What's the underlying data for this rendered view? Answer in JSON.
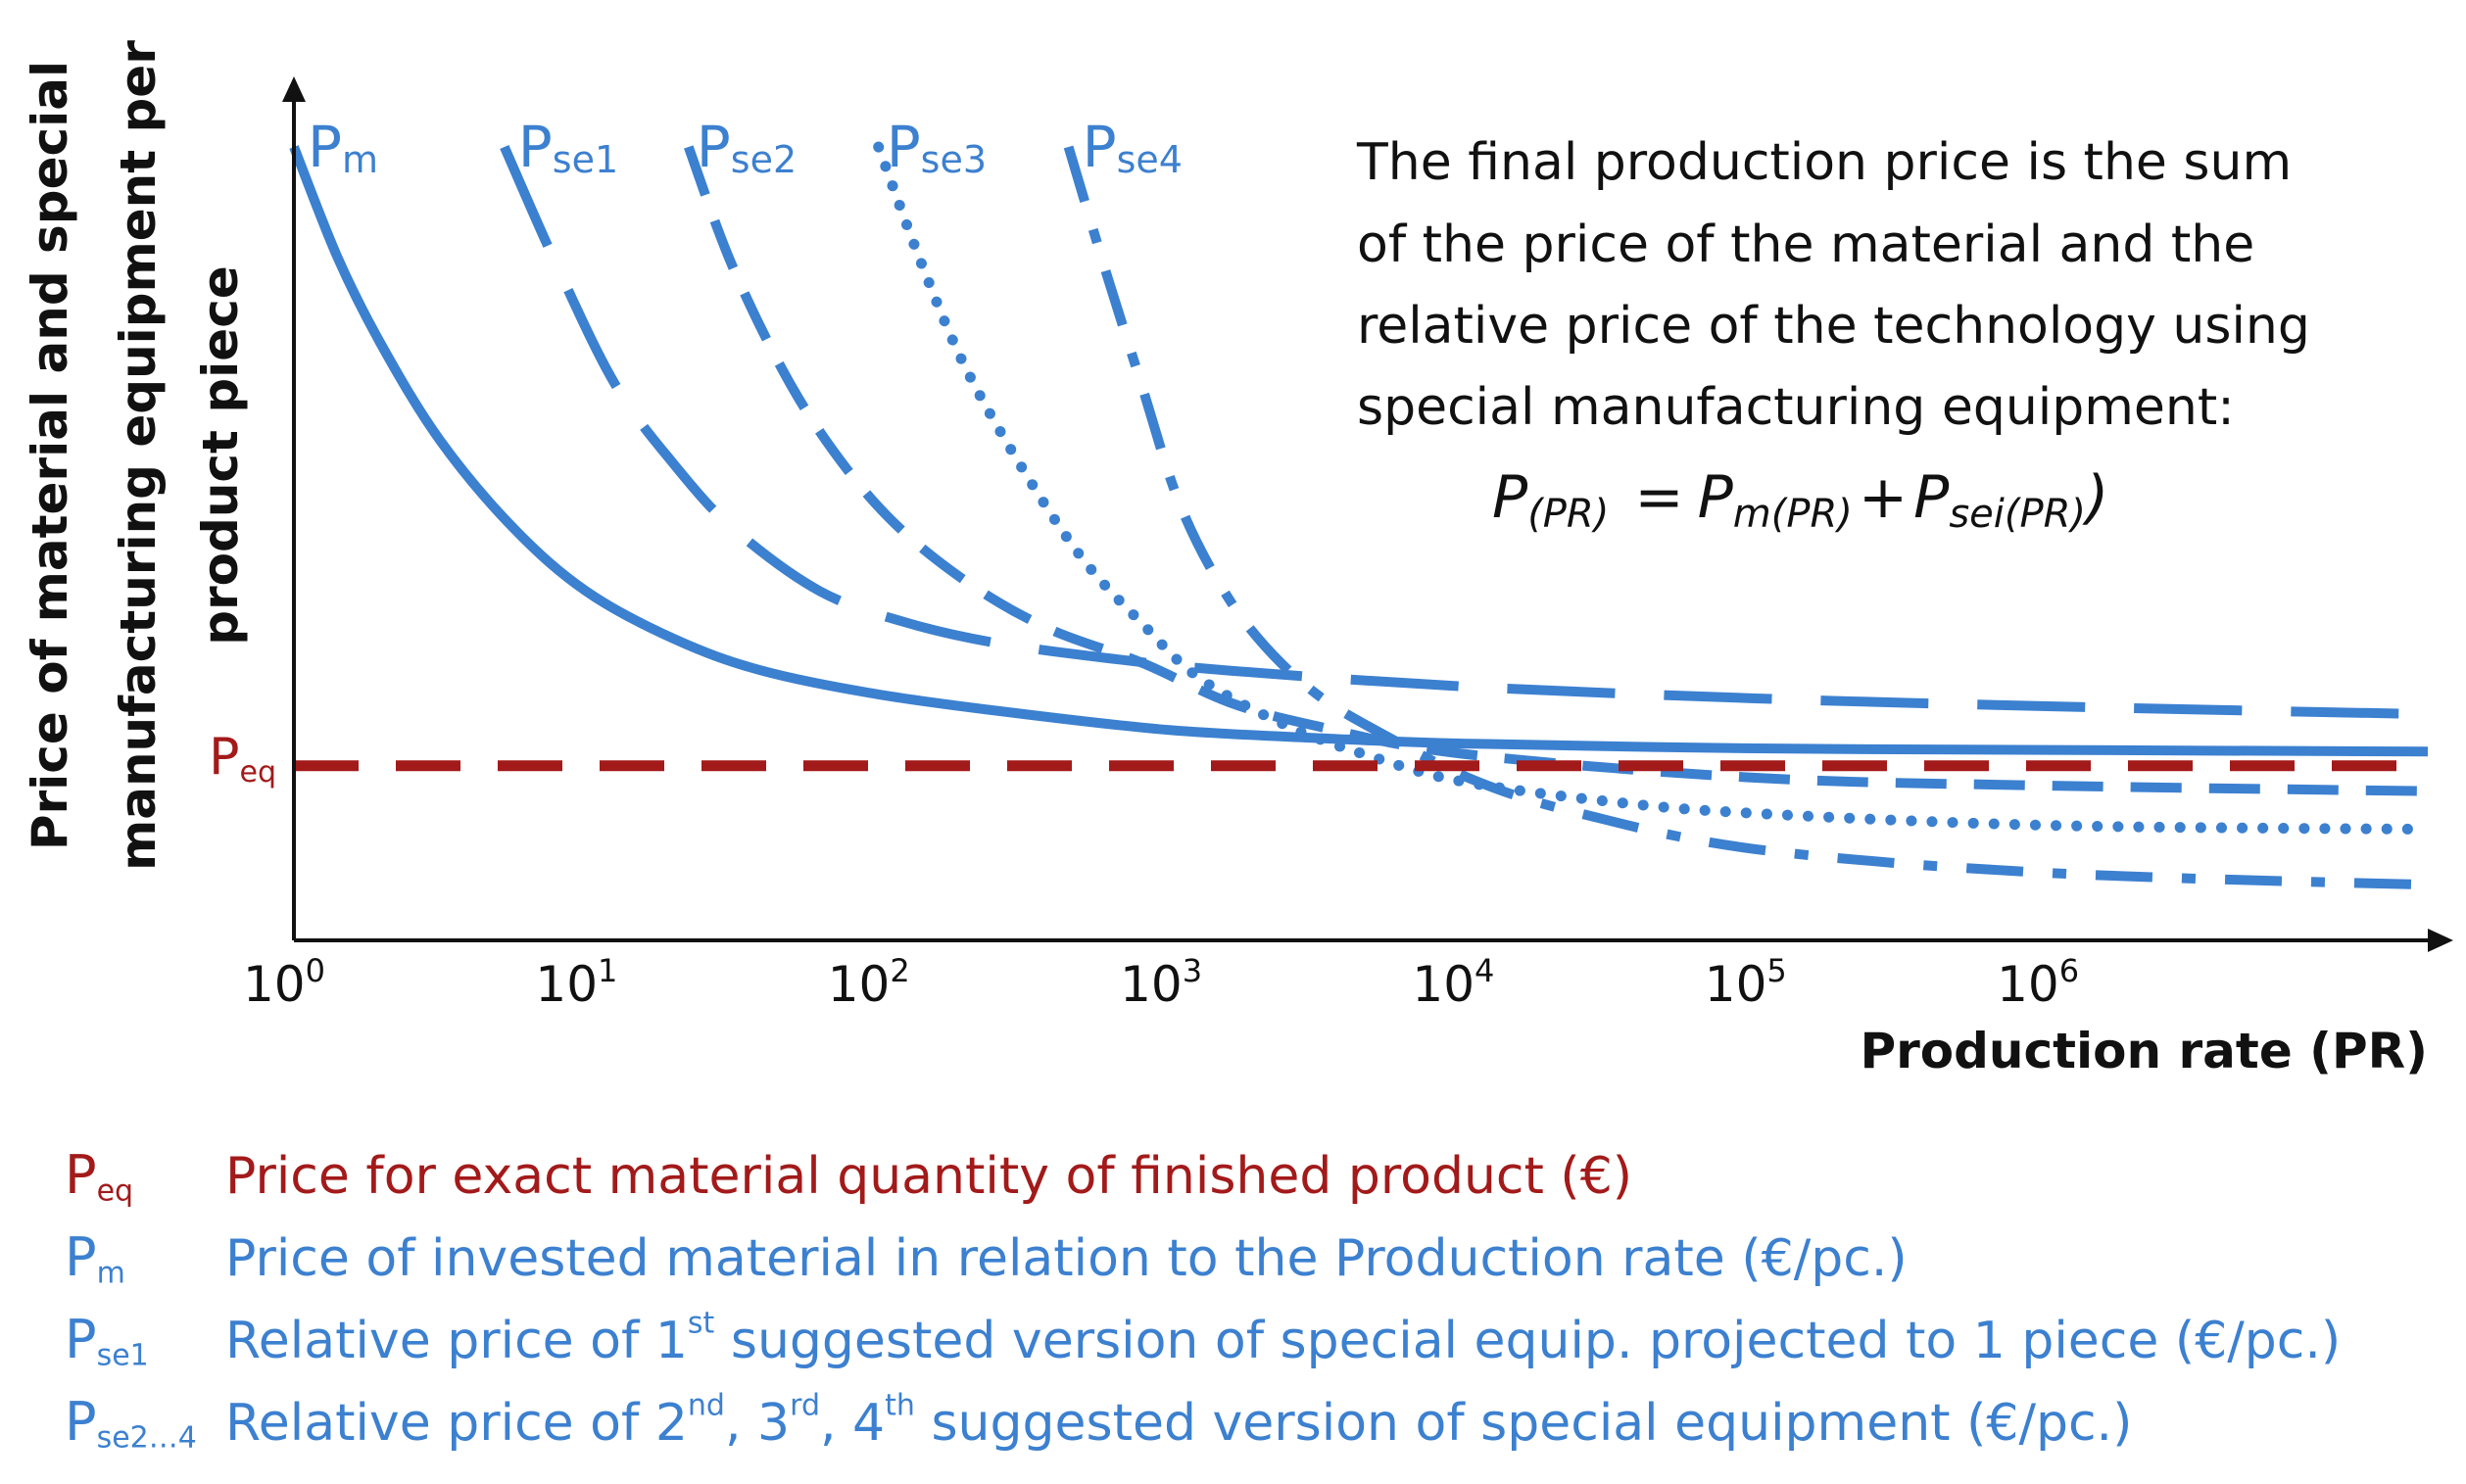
{
  "chart_data": {
    "type": "line",
    "title": "",
    "xlabel": "Production rate (PR)",
    "ylabel_line1": "Price of material and special",
    "ylabel_line2": "manufacturing  equipment per",
    "ylabel_line3": "product piece",
    "xscale": "log10",
    "xlim": [
      0,
      7.3
    ],
    "ylim": [
      0,
      100
    ],
    "x_ticks": [
      0,
      1,
      2,
      3,
      4,
      5,
      6
    ],
    "x_tick_base": "10",
    "x_tick_exps": [
      "0",
      "1",
      "2",
      "3",
      "4",
      "5",
      "6"
    ],
    "reference_line": {
      "name": "Peq",
      "base": "P",
      "sub": "eq",
      "y": 22,
      "color": "#a31a1a"
    },
    "series": [
      {
        "name": "Pm",
        "base": "P",
        "sub": "m",
        "style": "solid",
        "color": "#3c80d0",
        "x": [
          0,
          0.15,
          0.3,
          0.5,
          0.75,
          1,
          1.3,
          1.6,
          2,
          2.5,
          3,
          3.5,
          4,
          5,
          6,
          7.3
        ],
        "y": [
          100,
          86,
          75,
          63,
          52,
          44,
          38,
          34,
          31,
          28.5,
          26.5,
          25.5,
          24.8,
          24.2,
          24,
          23.8
        ]
      },
      {
        "name": "Pse1",
        "base": "P",
        "sub": "se1",
        "style": "long-dash",
        "color": "#3c80d0",
        "x": [
          0.72,
          0.9,
          1.1,
          1.3,
          1.5,
          1.8,
          2.1,
          2.4,
          2.8,
          3.2,
          4,
          5,
          6,
          7.3
        ],
        "y": [
          100,
          85,
          70,
          60,
          52,
          44,
          40,
          37.5,
          35.5,
          34,
          32,
          30.5,
          29.5,
          28.5
        ]
      },
      {
        "name": "Pse2",
        "base": "P",
        "sub": "se2",
        "style": "dash",
        "color": "#3c80d0",
        "x": [
          1.35,
          1.5,
          1.7,
          1.9,
          2.1,
          2.35,
          2.6,
          2.9,
          3.2,
          3.5,
          4,
          5,
          6,
          7.3
        ],
        "y": [
          100,
          85,
          70,
          59,
          51,
          44,
          39,
          35,
          30,
          27,
          23.5,
          20.5,
          19.5,
          18.8
        ]
      },
      {
        "name": "Pse3",
        "base": "P",
        "sub": "se3",
        "style": "dot",
        "color": "#3c80d0",
        "x": [
          2.0,
          2.15,
          2.3,
          2.5,
          2.7,
          2.9,
          3.1,
          3.4,
          3.7,
          4,
          4.5,
          5,
          6,
          7.3
        ],
        "y": [
          100,
          85,
          72,
          59,
          48,
          40,
          33,
          27,
          23,
          20,
          17.5,
          16,
          14.5,
          14
        ]
      },
      {
        "name": "Pse4",
        "base": "P",
        "sub": "se4",
        "style": "dash-dot",
        "color": "#3c80d0",
        "x": [
          2.65,
          2.78,
          2.9,
          3.02,
          3.15,
          3.3,
          3.5,
          3.75,
          4.05,
          4.4,
          5,
          6,
          7.3
        ],
        "y": [
          100,
          84,
          70,
          56,
          46,
          38,
          31,
          25.5,
          20,
          16,
          11.5,
          8.5,
          7
        ]
      }
    ]
  },
  "annotation": {
    "lines": [
      "The final production price is the sum",
      "of the price of the material and the",
      "relative price of the technology using",
      "special manufacturing equipment:"
    ],
    "formula": {
      "lhs": "P",
      "lhs_sub": "(PR)",
      "eq": "=",
      "t1": "P",
      "t1_sub": "m(PR)",
      "plus": "+",
      "t2": "P",
      "t2_sub": "sei(PR)",
      "close": ")"
    }
  },
  "legend": [
    {
      "sym": "P",
      "sub": "eq",
      "text": "Price for exact material quantity of finished product (€)",
      "color": "#a31a1a"
    },
    {
      "sym": "P",
      "sub": "m",
      "text": "Price of invested material in relation to the Production rate (€/pc.)",
      "color": "#3c80d0"
    },
    {
      "sym": "P",
      "sub": "se1",
      "text_a": "Relative price of 1",
      "sup_a": "st",
      "text_b": " suggested version of special equip. projected to 1 piece (€/pc.)",
      "color": "#3c80d0"
    },
    {
      "sym": "P",
      "sub": "se2…4",
      "text_a": "Relative price of 2",
      "sup_a": "nd",
      "text_b": ", 3",
      "sup_b": "rd",
      "text_c": ", 4",
      "sup_c": "th",
      "text_d": " suggested version of special equipment (€/pc.)",
      "color": "#3c80d0"
    }
  ]
}
